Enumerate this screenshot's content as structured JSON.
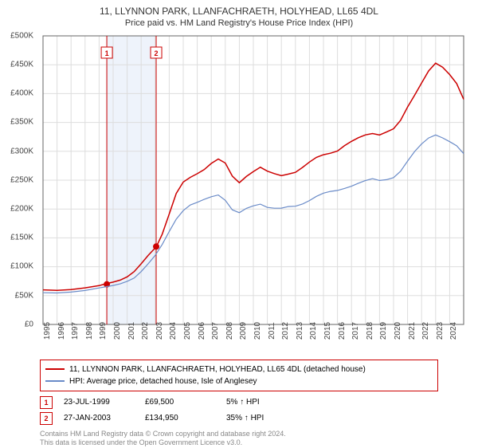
{
  "title_line1": "11, LLYNNON PARK, LLANFACHRAETH, HOLYHEAD, LL65 4DL",
  "title_line2": "Price paid vs. HM Land Registry's House Price Index (HPI)",
  "chart": {
    "type": "line",
    "background_color": "#ffffff",
    "grid_color": "#dddddd",
    "axis_color": "#666666",
    "ylim": [
      0,
      500000
    ],
    "ytick_step": 50000,
    "ylabel_prefix": "£",
    "ylabel_suffix": "K",
    "yticks_display": [
      "£0",
      "£50K",
      "£100K",
      "£150K",
      "£200K",
      "£250K",
      "£300K",
      "£350K",
      "£400K",
      "£450K",
      "£500K"
    ],
    "xrange": [
      1995,
      2025
    ],
    "xticks": [
      1995,
      1996,
      1997,
      1998,
      1999,
      2000,
      2001,
      2002,
      2003,
      2004,
      2005,
      2006,
      2007,
      2008,
      2009,
      2010,
      2011,
      2012,
      2013,
      2014,
      2015,
      2016,
      2017,
      2018,
      2019,
      2020,
      2021,
      2022,
      2023,
      2024
    ],
    "band": {
      "start": 1999.5,
      "end": 2003.1,
      "color": "#eef3fb"
    },
    "markers": [
      {
        "id": "1",
        "x": 1999.55,
        "y": 69500,
        "line_color": "#cc0000"
      },
      {
        "id": "2",
        "x": 2003.07,
        "y": 134950,
        "line_color": "#cc0000"
      }
    ],
    "series": [
      {
        "name": "property",
        "color": "#cc0000",
        "width": 1.5,
        "points": [
          [
            1995,
            60000
          ],
          [
            1996,
            60500
          ],
          [
            1997,
            62000
          ],
          [
            1998,
            63500
          ],
          [
            1999,
            66000
          ],
          [
            1999.55,
            69500
          ],
          [
            2000,
            73000
          ],
          [
            2000.5,
            78000
          ],
          [
            2001,
            84000
          ],
          [
            2001.5,
            92000
          ],
          [
            2002,
            104000
          ],
          [
            2002.5,
            118000
          ],
          [
            2003,
            132000
          ],
          [
            2003.07,
            134950
          ],
          [
            2003.5,
            158000
          ],
          [
            2004,
            192000
          ],
          [
            2004.5,
            226000
          ],
          [
            2005,
            245000
          ],
          [
            2005.5,
            254000
          ],
          [
            2006,
            262000
          ],
          [
            2006.5,
            270000
          ],
          [
            2007,
            280000
          ],
          [
            2007.5,
            286000
          ],
          [
            2008,
            278000
          ],
          [
            2008.5,
            256000
          ],
          [
            2009,
            246000
          ],
          [
            2009.5,
            258000
          ],
          [
            2010,
            266000
          ],
          [
            2010.5,
            272000
          ],
          [
            2011,
            264000
          ],
          [
            2011.5,
            260000
          ],
          [
            2012,
            258000
          ],
          [
            2012.5,
            262000
          ],
          [
            2013,
            265000
          ],
          [
            2013.5,
            272000
          ],
          [
            2014,
            280000
          ],
          [
            2014.5,
            288000
          ],
          [
            2015,
            294000
          ],
          [
            2015.5,
            298000
          ],
          [
            2016,
            302000
          ],
          [
            2016.5,
            310000
          ],
          [
            2017,
            316000
          ],
          [
            2017.5,
            322000
          ],
          [
            2018,
            328000
          ],
          [
            2018.5,
            332000
          ],
          [
            2019,
            330000
          ],
          [
            2019.5,
            334000
          ],
          [
            2020,
            338000
          ],
          [
            2020.5,
            352000
          ],
          [
            2021,
            376000
          ],
          [
            2021.5,
            398000
          ],
          [
            2022,
            420000
          ],
          [
            2022.5,
            440000
          ],
          [
            2023,
            452000
          ],
          [
            2023.5,
            444000
          ],
          [
            2024,
            432000
          ],
          [
            2024.5,
            418000
          ],
          [
            2025,
            390000
          ]
        ]
      },
      {
        "name": "hpi",
        "color": "#6a8bc8",
        "width": 1.2,
        "points": [
          [
            1995,
            55000
          ],
          [
            1996,
            56000
          ],
          [
            1997,
            57500
          ],
          [
            1998,
            59000
          ],
          [
            1999,
            62000
          ],
          [
            2000,
            66000
          ],
          [
            2000.5,
            70000
          ],
          [
            2001,
            76000
          ],
          [
            2001.5,
            82000
          ],
          [
            2002,
            92000
          ],
          [
            2002.5,
            104000
          ],
          [
            2003,
            118000
          ],
          [
            2003.5,
            138000
          ],
          [
            2004,
            162000
          ],
          [
            2004.5,
            184000
          ],
          [
            2005,
            198000
          ],
          [
            2005.5,
            206000
          ],
          [
            2006,
            210000
          ],
          [
            2006.5,
            216000
          ],
          [
            2007,
            222000
          ],
          [
            2007.5,
            226000
          ],
          [
            2008,
            216000
          ],
          [
            2008.5,
            198000
          ],
          [
            2009,
            192000
          ],
          [
            2009.5,
            200000
          ],
          [
            2010,
            206000
          ],
          [
            2010.5,
            210000
          ],
          [
            2011,
            204000
          ],
          [
            2011.5,
            201000
          ],
          [
            2012,
            200000
          ],
          [
            2012.5,
            203000
          ],
          [
            2013,
            205000
          ],
          [
            2013.5,
            210000
          ],
          [
            2014,
            216000
          ],
          [
            2014.5,
            222000
          ],
          [
            2015,
            226000
          ],
          [
            2015.5,
            229000
          ],
          [
            2016,
            232000
          ],
          [
            2016.5,
            237000
          ],
          [
            2017,
            241000
          ],
          [
            2017.5,
            245000
          ],
          [
            2018,
            248000
          ],
          [
            2018.5,
            251000
          ],
          [
            2019,
            249000
          ],
          [
            2019.5,
            252000
          ],
          [
            2020,
            256000
          ],
          [
            2020.5,
            266000
          ],
          [
            2021,
            282000
          ],
          [
            2021.5,
            298000
          ],
          [
            2022,
            312000
          ],
          [
            2022.5,
            324000
          ],
          [
            2023,
            330000
          ],
          [
            2023.5,
            324000
          ],
          [
            2024,
            316000
          ],
          [
            2024.5,
            308000
          ],
          [
            2025,
            296000
          ]
        ]
      }
    ]
  },
  "legend": {
    "border_color": "#cc0000",
    "items": [
      {
        "color": "#cc0000",
        "label": "11, LLYNNON PARK, LLANFACHRAETH, HOLYHEAD, LL65 4DL (detached house)"
      },
      {
        "color": "#6a8bc8",
        "label": "HPI: Average price, detached house, Isle of Anglesey"
      }
    ]
  },
  "marker_table": [
    {
      "id": "1",
      "date": "23-JUL-1999",
      "price": "£69,500",
      "delta": "5% ↑ HPI"
    },
    {
      "id": "2",
      "date": "27-JAN-2003",
      "price": "£134,950",
      "delta": "35% ↑ HPI"
    }
  ],
  "footer_line1": "Contains HM Land Registry data © Crown copyright and database right 2024.",
  "footer_line2": "This data is licensed under the Open Government Licence v3.0."
}
